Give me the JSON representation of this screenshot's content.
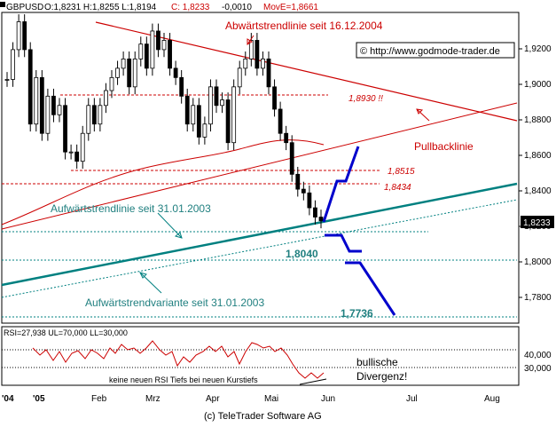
{
  "header": {
    "symbol_label": "GBPUSD",
    "ohlc": "O:1,8231 H:1,8255 L:1,8194",
    "close": "C: 1,8233",
    "change": "-0,0010",
    "moving_avg": "MovE=1,8661"
  },
  "watermark": "© http://www.godmode-trader.de",
  "footer": "(c) TeleTrader Software AG",
  "colors": {
    "candle": "#000000",
    "moving_average": "#cc0000",
    "downtrend_line": "#cc0000",
    "uptrend_line": "#008080",
    "projection": "#0000cc",
    "rsi_line": "#cc0000",
    "teal_text": "#1f7f7f",
    "red_text": "#cc0000"
  },
  "chart_data": [
    {
      "type": "candlestick",
      "panel": "price",
      "y_axis": {
        "ticks": [
          "1,9200",
          "1,9000",
          "1,8800",
          "1,8600",
          "1,8400",
          "1,8200",
          "1,8000",
          "1,7800"
        ],
        "range": [
          1.768,
          1.935
        ],
        "side": "right"
      },
      "x_axis": {
        "ticks": [
          "'04",
          "'05",
          "Feb",
          "Mrz",
          "Apr",
          "Mai",
          "Jun",
          "Jul",
          "Aug"
        ]
      },
      "last_price_label": "1,8233",
      "annotations": {
        "downtrend": "Abwärtstrendlinie seit 16.12.2004",
        "pullback": "Pullbacklinie",
        "uptrend": "Aufwärtstrendlinie seit 31.01.2003",
        "uptrend_variant": "Aufwärtstrendvariante seit 31.01.2003",
        "level_1_8930": "1,8930 !!",
        "level_1_8515": "1,8515",
        "level_1_8434": "1,8434",
        "level_1_8040": "1,8040",
        "level_1_7736": "1,7736"
      },
      "horizontal_levels": [
        1.893,
        1.8515,
        1.8434,
        1.8208,
        1.804,
        1.7736
      ],
      "close_series_approx": [
        1.899,
        1.915,
        1.93,
        1.915,
        1.875,
        1.9,
        1.87,
        1.89,
        1.88,
        1.885,
        1.86,
        1.86,
        1.855,
        1.87,
        1.885,
        1.875,
        1.885,
        1.893,
        1.9,
        1.905,
        1.91,
        1.895,
        1.91,
        1.918,
        1.905,
        1.925,
        1.915,
        1.92,
        1.905,
        1.9,
        1.89,
        1.875,
        1.885,
        1.868,
        1.875,
        1.895,
        1.885,
        1.888,
        1.865,
        1.895,
        1.905,
        1.91,
        1.92,
        1.905,
        1.91,
        1.895,
        1.883,
        1.87,
        1.865,
        1.848,
        1.84,
        1.838,
        1.83,
        1.825,
        1.823
      ]
    },
    {
      "type": "line",
      "panel": "rsi",
      "header": "RSI=27,938 UL=70,000 LL=30,000",
      "y_axis": {
        "ticks": [
          "40,000",
          "30,000"
        ],
        "side": "right"
      },
      "upper_level": 70,
      "lower_level": 30,
      "annotation_divergence": "bullische Divergenz!",
      "annotation_note": "keine neuen RSI Tiefs bei neuen Kurstiefs"
    }
  ]
}
